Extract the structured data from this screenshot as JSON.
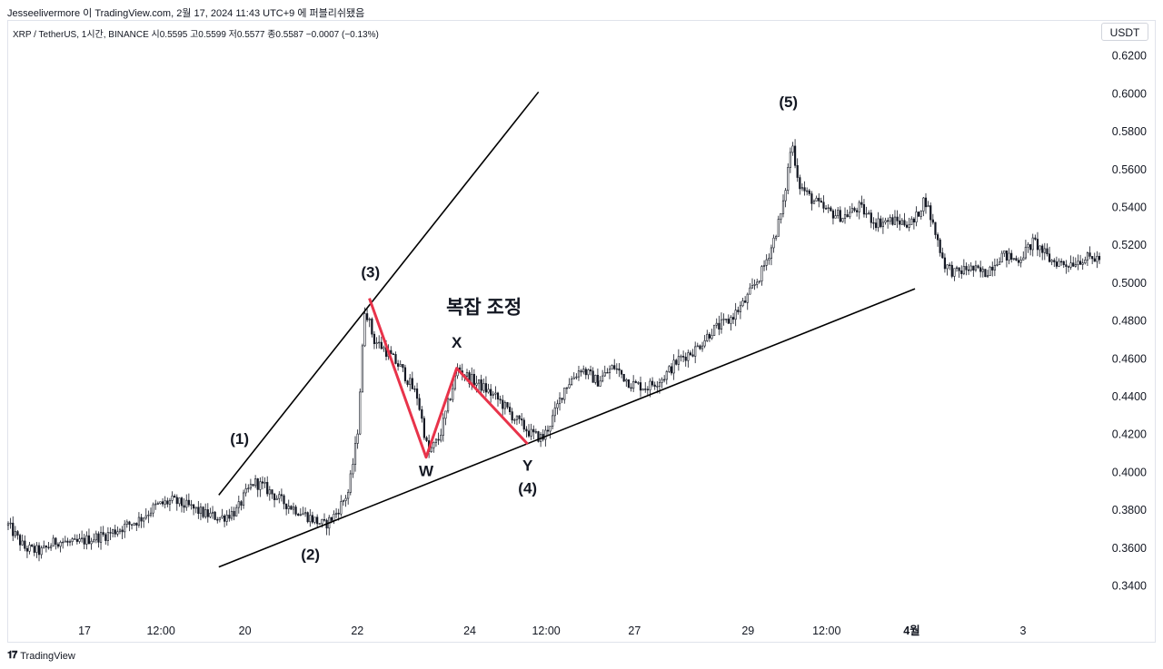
{
  "header": {
    "byline": "Jesseelivermore 이 TradingView.com, 2월 17, 2024 11:43 UTC+9 에 퍼블리쉬됐음"
  },
  "symbol_info": "XRP / TetherUS, 1시간, BINANCE  시0.5595  고0.5599  저0.5577  종0.5587  −0.0007 (−0.13%)",
  "currency": "USDT",
  "footer": {
    "brand": "TradingView",
    "logo_icon": "tradingview-logo-icon"
  },
  "colors": {
    "candle": "#131722",
    "pattern": "#e8334a",
    "trendline": "#000000"
  },
  "chart_data": {
    "type": "candlestick",
    "title": "",
    "xlabel": "",
    "ylabel": "",
    "ylim": [
      0.33,
      0.63
    ],
    "y_ticks": [
      "0.6200",
      "0.6000",
      "0.5800",
      "0.5600",
      "0.5400",
      "0.5200",
      "0.5000",
      "0.4800",
      "0.4600",
      "0.4400",
      "0.4200",
      "0.4000",
      "0.3800",
      "0.3600",
      "0.3400"
    ],
    "x_ticks": [
      {
        "label": "17",
        "pos": 0.07
      },
      {
        "label": "12:00",
        "pos": 0.14
      },
      {
        "label": "20",
        "pos": 0.217
      },
      {
        "label": "22",
        "pos": 0.32
      },
      {
        "label": "24",
        "pos": 0.423
      },
      {
        "label": "12:00",
        "pos": 0.493
      },
      {
        "label": "27",
        "pos": 0.574
      },
      {
        "label": "29",
        "pos": 0.678
      },
      {
        "label": "12:00",
        "pos": 0.75
      },
      {
        "label": "4월",
        "pos": 0.828
      },
      {
        "label": "3",
        "pos": 0.93
      }
    ],
    "price_path": [
      [
        0.0,
        0.372
      ],
      [
        0.015,
        0.36
      ],
      [
        0.03,
        0.358
      ],
      [
        0.045,
        0.364
      ],
      [
        0.06,
        0.362
      ],
      [
        0.075,
        0.365
      ],
      [
        0.09,
        0.367
      ],
      [
        0.105,
        0.371
      ],
      [
        0.12,
        0.375
      ],
      [
        0.135,
        0.382
      ],
      [
        0.15,
        0.385
      ],
      [
        0.165,
        0.382
      ],
      [
        0.18,
        0.378
      ],
      [
        0.195,
        0.376
      ],
      [
        0.21,
        0.38
      ],
      [
        0.215,
        0.386
      ],
      [
        0.225,
        0.395
      ],
      [
        0.235,
        0.392
      ],
      [
        0.25,
        0.385
      ],
      [
        0.265,
        0.38
      ],
      [
        0.28,
        0.375
      ],
      [
        0.29,
        0.372
      ],
      [
        0.3,
        0.378
      ],
      [
        0.312,
        0.39
      ],
      [
        0.32,
        0.42
      ],
      [
        0.327,
        0.488
      ],
      [
        0.335,
        0.47
      ],
      [
        0.345,
        0.465
      ],
      [
        0.36,
        0.455
      ],
      [
        0.375,
        0.44
      ],
      [
        0.385,
        0.41
      ],
      [
        0.395,
        0.418
      ],
      [
        0.405,
        0.44
      ],
      [
        0.412,
        0.455
      ],
      [
        0.422,
        0.45
      ],
      [
        0.435,
        0.445
      ],
      [
        0.45,
        0.438
      ],
      [
        0.465,
        0.428
      ],
      [
        0.48,
        0.42
      ],
      [
        0.49,
        0.418
      ],
      [
        0.5,
        0.43
      ],
      [
        0.51,
        0.445
      ],
      [
        0.525,
        0.455
      ],
      [
        0.54,
        0.448
      ],
      [
        0.555,
        0.456
      ],
      [
        0.57,
        0.447
      ],
      [
        0.585,
        0.445
      ],
      [
        0.6,
        0.45
      ],
      [
        0.615,
        0.46
      ],
      [
        0.63,
        0.465
      ],
      [
        0.645,
        0.475
      ],
      [
        0.66,
        0.48
      ],
      [
        0.675,
        0.49
      ],
      [
        0.69,
        0.505
      ],
      [
        0.7,
        0.52
      ],
      [
        0.71,
        0.54
      ],
      [
        0.718,
        0.575
      ],
      [
        0.725,
        0.552
      ],
      [
        0.735,
        0.545
      ],
      [
        0.75,
        0.538
      ],
      [
        0.765,
        0.535
      ],
      [
        0.78,
        0.54
      ],
      [
        0.795,
        0.532
      ],
      [
        0.81,
        0.533
      ],
      [
        0.82,
        0.532
      ],
      [
        0.83,
        0.532
      ],
      [
        0.84,
        0.545
      ],
      [
        0.848,
        0.53
      ],
      [
        0.858,
        0.51
      ],
      [
        0.868,
        0.505
      ],
      [
        0.88,
        0.508
      ],
      [
        0.895,
        0.505
      ],
      [
        0.91,
        0.515
      ],
      [
        0.925,
        0.512
      ],
      [
        0.94,
        0.522
      ],
      [
        0.955,
        0.512
      ],
      [
        0.97,
        0.51
      ],
      [
        0.985,
        0.513
      ]
    ],
    "trendlines": [
      {
        "name": "upper-channel",
        "from": [
          0.193,
          0.388
        ],
        "to": [
          0.486,
          0.601
        ]
      },
      {
        "name": "lower-support",
        "from": [
          0.193,
          0.35
        ],
        "to": [
          0.831,
          0.497
        ]
      }
    ],
    "correction_path": [
      [
        0.331,
        0.492
      ],
      [
        0.383,
        0.408
      ],
      [
        0.411,
        0.455
      ],
      [
        0.476,
        0.415
      ]
    ],
    "annotations": [
      {
        "text": "(1)",
        "x": 0.212,
        "y": 0.415
      },
      {
        "text": "(2)",
        "x": 0.277,
        "y": 0.354
      },
      {
        "text": "(3)",
        "x": 0.332,
        "y": 0.503
      },
      {
        "text": "(4)",
        "x": 0.476,
        "y": 0.389
      },
      {
        "text": "(5)",
        "x": 0.715,
        "y": 0.593
      },
      {
        "text": "W",
        "x": 0.383,
        "y": 0.398
      },
      {
        "text": "X",
        "x": 0.411,
        "y": 0.466
      },
      {
        "text": "Y",
        "x": 0.476,
        "y": 0.401
      },
      {
        "text": "복잡 조정",
        "x": 0.436,
        "y": 0.484
      }
    ]
  }
}
